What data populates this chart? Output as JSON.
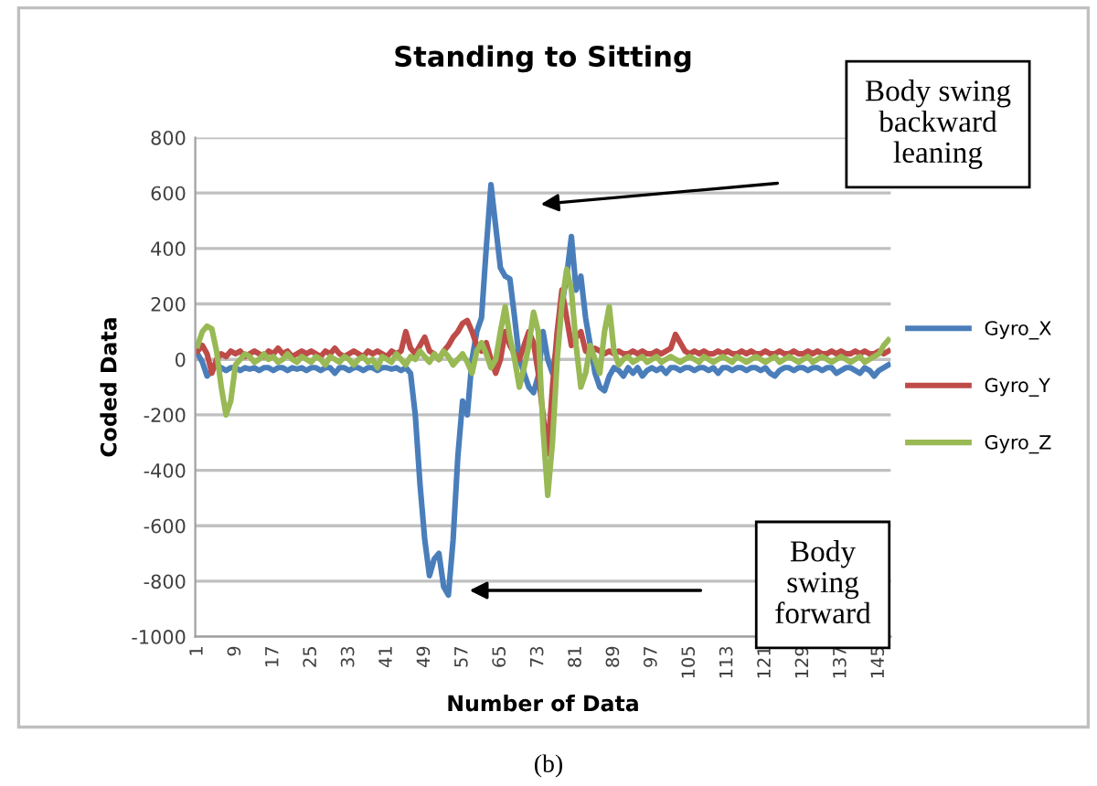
{
  "chart_data": {
    "type": "line",
    "title": "Standing to Sitting",
    "xlabel": "Number of Data",
    "ylabel": "Coded Data",
    "categories": [
      "1",
      null,
      null,
      null,
      null,
      null,
      null,
      null,
      "9",
      null,
      null,
      null,
      null,
      null,
      null,
      null,
      "17",
      null,
      null,
      null,
      null,
      null,
      null,
      null,
      "25",
      null,
      null,
      null,
      null,
      null,
      null,
      null,
      "33",
      null,
      null,
      null,
      null,
      null,
      null,
      null,
      "41",
      null,
      null,
      null,
      null,
      null,
      null,
      null,
      "49",
      null,
      null,
      null,
      null,
      null,
      null,
      null,
      "57",
      null,
      null,
      null,
      null,
      null,
      null,
      null,
      "65",
      null,
      null,
      null,
      null,
      null,
      null,
      null,
      "73",
      null,
      null,
      null,
      null,
      null,
      null,
      null,
      "81",
      null,
      null,
      null,
      null,
      null,
      null,
      null,
      "89",
      null,
      null,
      null,
      null,
      null,
      null,
      null,
      "97",
      null,
      null,
      null,
      null,
      null,
      null,
      null,
      "105",
      null,
      null,
      null,
      null,
      null,
      null,
      null,
      "113",
      null,
      null,
      null,
      null,
      null,
      null,
      null,
      "121",
      null,
      null,
      null,
      null,
      null,
      null,
      null,
      "129",
      null,
      null,
      null,
      null,
      null,
      null,
      null,
      "137",
      null,
      null,
      null,
      null,
      null,
      null,
      null,
      "145",
      null,
      null
    ],
    "series": [
      {
        "name": "Gyro_X",
        "color": "#4a7ebb",
        "values": [
          20,
          -10,
          -60,
          -40,
          -20,
          -30,
          -40,
          -30,
          -30,
          -40,
          -30,
          -35,
          -30,
          -40,
          -30,
          -30,
          -40,
          -30,
          -30,
          -40,
          -30,
          -35,
          -30,
          -40,
          -30,
          -30,
          -40,
          -30,
          -30,
          -50,
          -30,
          -30,
          -40,
          -30,
          -30,
          -40,
          -30,
          -30,
          -40,
          -30,
          -30,
          -35,
          -30,
          -40,
          -30,
          -50,
          -200,
          -450,
          -650,
          -780,
          -720,
          -700,
          -820,
          -850,
          -650,
          -350,
          -150,
          -200,
          0,
          100,
          150,
          400,
          630,
          480,
          330,
          300,
          290,
          150,
          0,
          -50,
          -100,
          -120,
          -60,
          100,
          0,
          -50,
          50,
          200,
          300,
          443,
          250,
          300,
          150,
          50,
          -50,
          -100,
          -113,
          -60,
          -30,
          -40,
          -60,
          -30,
          -50,
          -30,
          -60,
          -40,
          -30,
          -40,
          -30,
          -50,
          -30,
          -30,
          -40,
          -30,
          -30,
          -40,
          -30,
          -30,
          -40,
          -30,
          -50,
          -30,
          -30,
          -40,
          -30,
          -30,
          -40,
          -30,
          -30,
          -40,
          -30,
          -50,
          -60,
          -40,
          -30,
          -30,
          -40,
          -30,
          -30,
          -40,
          -30,
          -30,
          -40,
          -30,
          -30,
          -50,
          -40,
          -30,
          -30,
          -40,
          -50,
          -30,
          -40,
          -60,
          -40,
          -30,
          -20
        ]
      },
      {
        "name": "Gyro_Y",
        "color": "#be4b48",
        "values": [
          30,
          50,
          20,
          -50,
          0,
          20,
          10,
          30,
          20,
          30,
          10,
          20,
          30,
          20,
          10,
          30,
          20,
          40,
          20,
          30,
          10,
          20,
          30,
          20,
          30,
          20,
          10,
          30,
          20,
          40,
          20,
          10,
          20,
          30,
          20,
          10,
          30,
          20,
          30,
          20,
          10,
          30,
          20,
          30,
          100,
          40,
          20,
          50,
          80,
          30,
          20,
          0,
          30,
          50,
          80,
          100,
          130,
          140,
          100,
          50,
          30,
          60,
          0,
          -50,
          0,
          100,
          50,
          20,
          0,
          50,
          100,
          60,
          -50,
          -200,
          -340,
          -100,
          100,
          250,
          150,
          50,
          80,
          100,
          30,
          20,
          40,
          30,
          20,
          30,
          20,
          30,
          20,
          20,
          30,
          20,
          30,
          20,
          20,
          30,
          20,
          30,
          40,
          90,
          60,
          30,
          20,
          30,
          20,
          30,
          20,
          20,
          30,
          20,
          30,
          20,
          20,
          30,
          20,
          30,
          20,
          20,
          30,
          20,
          20,
          30,
          20,
          20,
          30,
          20,
          20,
          30,
          20,
          30,
          20,
          20,
          30,
          20,
          30,
          20,
          20,
          30,
          20,
          30,
          20,
          20,
          30,
          20,
          30
        ]
      },
      {
        "name": "Gyro_Z",
        "color": "#98b954",
        "values": [
          50,
          100,
          120,
          110,
          30,
          -100,
          -200,
          -150,
          -20,
          0,
          20,
          10,
          -10,
          0,
          20,
          0,
          10,
          -10,
          0,
          20,
          0,
          -10,
          10,
          0,
          -10,
          10,
          0,
          -20,
          10,
          0,
          -10,
          10,
          0,
          -20,
          0,
          10,
          -10,
          0,
          -30,
          10,
          0,
          -10,
          20,
          0,
          -20,
          10,
          0,
          30,
          10,
          -10,
          20,
          0,
          30,
          10,
          -20,
          0,
          20,
          -10,
          -50,
          30,
          60,
          20,
          -30,
          0,
          100,
          190,
          80,
          0,
          -100,
          -30,
          50,
          170,
          100,
          -250,
          -490,
          -300,
          0,
          200,
          325,
          250,
          50,
          -100,
          -50,
          50,
          0,
          -50,
          100,
          190,
          30,
          -20,
          0,
          10,
          -10,
          0,
          10,
          -10,
          0,
          10,
          -10,
          0,
          10,
          0,
          -10,
          0,
          10,
          0,
          -10,
          10,
          0,
          -10,
          0,
          10,
          0,
          -10,
          10,
          0,
          -10,
          0,
          10,
          0,
          -10,
          0,
          10,
          -10,
          0,
          10,
          0,
          -10,
          0,
          10,
          -10,
          0,
          10,
          0,
          -10,
          0,
          10,
          0,
          -10,
          0,
          10,
          -10,
          0,
          10,
          20,
          50,
          70
        ]
      }
    ],
    "ylim": [
      -1000,
      800
    ],
    "yticks": [
      -1000,
      -800,
      -600,
      -400,
      -200,
      0,
      200,
      400,
      600,
      800
    ],
    "grid": "y",
    "legend": "right",
    "marker": "none",
    "line_style": "solid",
    "annotations": [
      "Body swing\nbackward\nleaning",
      "Body\nswing\nforward",
      "(b)"
    ]
  }
}
